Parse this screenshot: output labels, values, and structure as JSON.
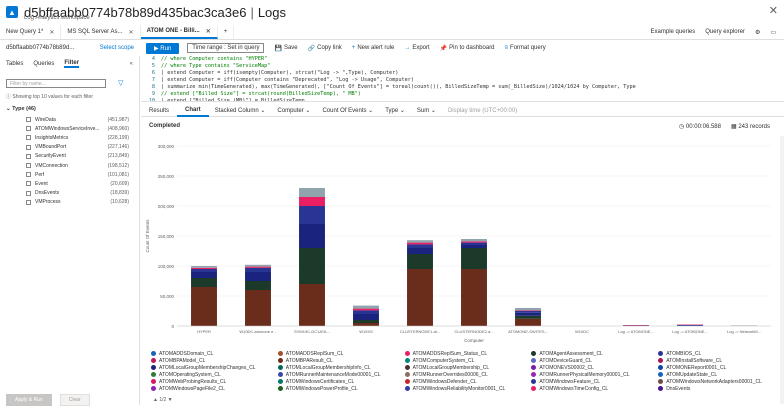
{
  "titlebar": {
    "title": "d5bffaabb0774b78b89d435bac3ca3e6",
    "sep": "|",
    "section": "Logs",
    "subtitle": "Log Analytics workspace"
  },
  "tabs": [
    {
      "label": "New Query 1*",
      "active": false
    },
    {
      "label": "MS SQL Server As...",
      "active": false
    },
    {
      "label": "ATOM ONE - Billi...",
      "active": true
    }
  ],
  "tabbar_right": {
    "examples": "Example queries",
    "explorer": "Query explorer"
  },
  "toolbar": {
    "workspace": "d5bffaabb0774b78b89d...",
    "select_scope": "Select scope",
    "run": "Run",
    "time_range": "Time range : Set in query",
    "save": "Save",
    "copy_link": "Copy link",
    "new_alert": "New alert rule",
    "export": "Export",
    "pin": "Pin to dashboard",
    "format": "Format query"
  },
  "left_panel": {
    "tabs": [
      "Tables",
      "Queries",
      "Filter"
    ],
    "active_tab": "Filter",
    "filter_placeholder": "Filter by name...",
    "note": "Showing top 10 values for each filter",
    "type_header": "Type (46)",
    "items": [
      {
        "name": "WireData",
        "count": "(451,987)"
      },
      {
        "name": "ATOMWindowsServiceInve...",
        "count": "(408,960)"
      },
      {
        "name": "InsightsMetrics",
        "count": "(228,199)"
      },
      {
        "name": "VMBoundPort",
        "count": "(227,146)"
      },
      {
        "name": "SecurityEvent",
        "count": "(213,849)"
      },
      {
        "name": "VMConnection",
        "count": "(198,512)"
      },
      {
        "name": "Perf",
        "count": "(101,081)"
      },
      {
        "name": "Event",
        "count": "(20,609)"
      },
      {
        "name": "DnsEvents",
        "count": "(18,839)"
      },
      {
        "name": "VMProcess",
        "count": "(10,628)"
      }
    ],
    "apply": "Apply & Run",
    "clear": "Clear"
  },
  "editor": {
    "lines": [
      {
        "num": "4",
        "text": "// where Computer contains \"HYPER\"",
        "cls": "cmt"
      },
      {
        "num": "5",
        "text": "// where Type contains \"ServiceMap\"",
        "cls": "cmt"
      },
      {
        "num": "6",
        "text": "| extend Computer = iff(isempty(Computer), strcat(\"Log -> \",Type), Computer)",
        "cls": ""
      },
      {
        "num": "7",
        "text": "| extend Computer = iff(Computer contains \"Deprecated\", \"Log -> Usage\", Computer)",
        "cls": ""
      },
      {
        "num": "8",
        "text": "| summarize min(TimeGenerated), max(TimeGenerated), [\"Count Of Events\"] = toreal(count()), BilledSizeTemp = sum(_BilledSize)/1024/1024 by Computer, Type",
        "cls": ""
      },
      {
        "num": "9",
        "text": "// extend [\"Billed Size\"] = strcat(round(BilledSizeTemp), \" MB\")",
        "cls": "cmt"
      },
      {
        "num": "10",
        "text": "| extend [\"Billed Size (MB)\"] = BilledSizeTemp",
        "cls": ""
      }
    ]
  },
  "results": {
    "tabs": [
      "Results",
      "Chart"
    ],
    "active": "Chart",
    "dropdowns": [
      "Stacked Column",
      "Computer",
      "Count Of Events",
      "Type",
      "Sum"
    ],
    "display_time": "Display time (UTC+00:00)",
    "status": "Completed",
    "elapsed": "00:00:06.588",
    "records": "243 records"
  },
  "chart_data": {
    "type": "bar",
    "stacked": true,
    "xlabel": "Computer",
    "ylabel": "Count Of Events",
    "ylim": [
      0,
      300000
    ],
    "yticks": [
      "0",
      "50,000",
      "100,000",
      "150,000",
      "200,000",
      "250,000",
      "300,000"
    ],
    "categories": [
      "HYPER",
      "W10DC.atomone.e...",
      "SYM19C-DC1ATA...",
      "W19XS",
      "CLUSTERNODE1.at...",
      "CLUSTERNODE2.a...",
      "ATOMONE-SWITES...",
      "W10DC",
      "Log -> ATOMONE...",
      "Log -> ATOMONE...",
      "Log -> NetworkM..."
    ],
    "series": [
      {
        "color": "#6b2d1b",
        "values": [
          65000,
          60000,
          70000,
          5000,
          95000,
          95000,
          12000,
          0,
          0,
          0,
          0
        ]
      },
      {
        "color": "#1b3a2a",
        "values": [
          15000,
          15000,
          60000,
          5000,
          25000,
          35000,
          5000,
          0,
          0,
          0,
          0
        ]
      },
      {
        "color": "#1a237e",
        "values": [
          10000,
          15000,
          40000,
          10000,
          10000,
          5000,
          5000,
          0,
          1000,
          0,
          0
        ]
      },
      {
        "color": "#283593",
        "values": [
          5000,
          7000,
          30000,
          6000,
          6000,
          4000,
          3000,
          0,
          0,
          2000,
          0
        ]
      },
      {
        "color": "#e91e63",
        "values": [
          2000,
          2000,
          15000,
          3000,
          3000,
          2000,
          1000,
          0,
          500,
          500,
          0
        ]
      },
      {
        "color": "#90a4ae",
        "values": [
          3000,
          3000,
          15000,
          5000,
          4000,
          4000,
          4000,
          0,
          0,
          0,
          1000
        ]
      }
    ]
  },
  "legend": {
    "items": [
      {
        "label": "ATOMADDSDomain_CL",
        "color": "#1565c0"
      },
      {
        "label": "ATOMADDSReplSum_CL",
        "color": "#a0522d"
      },
      {
        "label": "ATOMADDSReplSum_Status_CL",
        "color": "#e91e63"
      },
      {
        "label": "ATOMAgentAssessment_CL",
        "color": "#1b3a2a"
      },
      {
        "label": "ATOMBIOS_CL",
        "color": "#283593"
      },
      {
        "label": "ATOMBPAModel_CL",
        "color": "#c2185b"
      },
      {
        "label": "ATOMBPAResult_CL",
        "color": "#6b2d1b"
      },
      {
        "label": "ATOMComputerSystem_CL",
        "color": "#00897b"
      },
      {
        "label": "ATOMDeviceGuard_CL",
        "color": "#5c6bc0"
      },
      {
        "label": "ATOMInstallSoftware_CL",
        "color": "#ad1457"
      },
      {
        "label": "ATOMLocalGroupMembershipChanges_CL",
        "color": "#1a237e"
      },
      {
        "label": "ATOMLocalGroupMembershipInfo_CL",
        "color": "#00695c"
      },
      {
        "label": "ATOMLocalGroupMembership_CL",
        "color": "#4e342e"
      },
      {
        "label": "ATOMONEVS00002_CL",
        "color": "#7b1fa2"
      },
      {
        "label": "ATOMONEReport0001_CL",
        "color": "#0d47a1"
      },
      {
        "label": "ATOMOperatingSystem_CL",
        "color": "#2e7d32"
      },
      {
        "label": "ATOMRunnerMaintenanceMode00001_CL",
        "color": "#3949ab"
      },
      {
        "label": "ATOMRunnerOverrides00006_CL",
        "color": "#8d6e63"
      },
      {
        "label": "ATOMRunnerPhysicalMemory00001_CL",
        "color": "#9c27b0"
      },
      {
        "label": "ATOMUpdateState_CL",
        "color": "#1565c0"
      },
      {
        "label": "ATOMWebProbingResults_CL",
        "color": "#d81b60"
      },
      {
        "label": "ATOMWindowsCertificates_CL",
        "color": "#00796b"
      },
      {
        "label": "ATOMWindowsDefender_CL",
        "color": "#c62828"
      },
      {
        "label": "ATOMWindowsFeature_CL",
        "color": "#283593"
      },
      {
        "label": "ATOMWindowsNetworkAdapters00001_CL",
        "color": "#6d4c41"
      },
      {
        "label": "ATOMWindowsPageFile2_CL",
        "color": "#8e24aa"
      },
      {
        "label": "ATOMWindowsPowerProfile_CL",
        "color": "#1b5e20"
      },
      {
        "label": "ATOMWindowsReliabilityMonitor0001_CL",
        "color": "#303f9f"
      },
      {
        "label": "ATOMWindowsTimeConfig_CL",
        "color": "#e91e63"
      },
      {
        "label": "DnsEvents",
        "color": "#4a148c"
      }
    ],
    "pager": "1/2"
  }
}
